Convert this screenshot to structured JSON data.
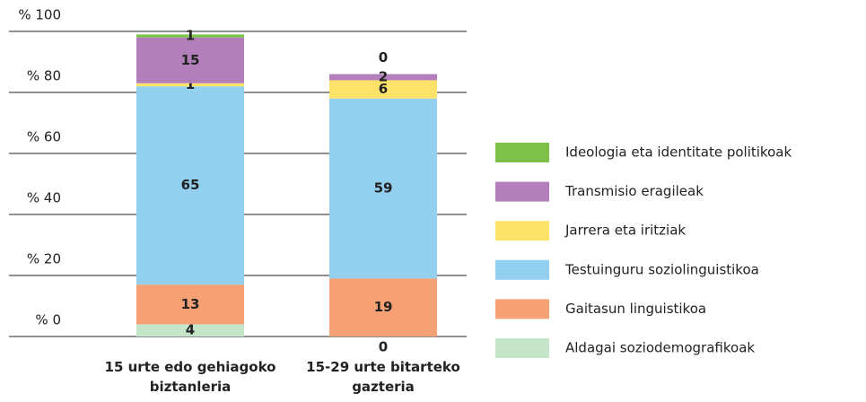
{
  "chart_data": {
    "type": "stacked_bar",
    "categories": [
      "15 urte edo gehiagoko biztanleria",
      "15-29 urte bitarteko gazteria"
    ],
    "series": [
      {
        "name": "Aldagai soziodemografikoak",
        "color": "#c5e5c8",
        "values": [
          4,
          0
        ]
      },
      {
        "name": "Gaitasun linguistikoa",
        "color": "#f5a173",
        "values": [
          13,
          19
        ]
      },
      {
        "name": "Testuinguru soziolinguistikoa",
        "color": "#93d0ef",
        "values": [
          65,
          59
        ]
      },
      {
        "name": "Jarrera eta iritziak",
        "color": "#fde26a",
        "values": [
          1,
          6
        ]
      },
      {
        "name": "Transmisio eragileak",
        "color": "#b27fba",
        "values": [
          15,
          2
        ]
      },
      {
        "name": "Ideologia eta identitate politikoak",
        "color": "#7dc04a",
        "values": [
          1,
          0
        ]
      }
    ],
    "ylim": [
      0,
      100
    ],
    "yticks": [
      {
        "value": 0,
        "label": "% 0"
      },
      {
        "value": 20,
        "label": "% 20"
      },
      {
        "value": 40,
        "label": "% 40"
      },
      {
        "value": 60,
        "label": "% 60"
      },
      {
        "value": 80,
        "label": "% 80"
      },
      {
        "value": 100,
        "label": "% 100"
      }
    ],
    "grid": true,
    "legend": "right"
  }
}
